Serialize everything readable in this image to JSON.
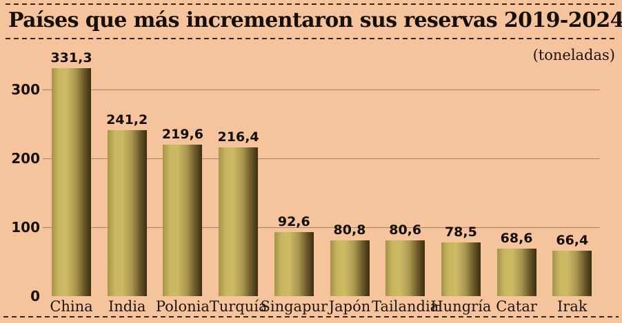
{
  "title": "Países que más incrementaron sus reservas 2019-2024",
  "unit_label": "(toneladas)",
  "colors": {
    "background": "#f5c49d",
    "bar_light": "#ccba66",
    "bar_dark": "#3a2e12",
    "gridline": "#96846e",
    "text": "#160f08",
    "dash": "#32261a"
  },
  "chart_data": {
    "type": "bar",
    "title": "Países que más incrementaron sus reservas 2019-2024",
    "subtitle": "(toneladas)",
    "categories": [
      "China",
      "India",
      "Polonia",
      "Turquía",
      "Singapur",
      "Japón",
      "Tailandia",
      "Hungría",
      "Catar",
      "Irak"
    ],
    "values": [
      331.3,
      241.2,
      219.6,
      216.4,
      92.6,
      80.8,
      80.6,
      78.5,
      68.6,
      66.4
    ],
    "value_labels": [
      "331,3",
      "241,2",
      "219,6",
      "216,4",
      "92,6",
      "80,8",
      "80,6",
      "78,5",
      "68,6",
      "66,4"
    ],
    "xlabel": "",
    "ylabel": "toneladas",
    "y_ticks": [
      0,
      100,
      200,
      300
    ],
    "ylim": [
      0,
      340
    ],
    "grid": true,
    "legend": false
  }
}
